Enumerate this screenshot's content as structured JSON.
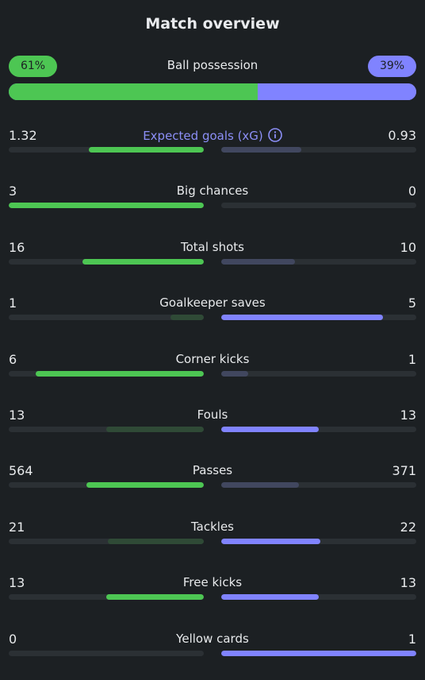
{
  "title": "Match overview",
  "possession": {
    "label": "Ball possession",
    "home_pct_label": "61%",
    "away_pct_label": "39%",
    "home_fraction": 0.61
  },
  "colors": {
    "home_strong": "#4dc653",
    "home_dim": "#2f4a36",
    "away_strong": "#8083ff",
    "away_dim": "#41475f"
  },
  "stats": [
    {
      "label": "Expected goals (xG)",
      "home": "1.32",
      "away": "0.93",
      "home_fraction": 0.59,
      "away_fraction": 0.41,
      "highlight": "home",
      "accent": true,
      "info_icon": "info-icon"
    },
    {
      "label": "Big chances",
      "home": "3",
      "away": "0",
      "home_fraction": 1.0,
      "away_fraction": 0.0,
      "highlight": "home"
    },
    {
      "label": "Total shots",
      "home": "16",
      "away": "10",
      "home_fraction": 0.62,
      "away_fraction": 0.38,
      "highlight": "home"
    },
    {
      "label": "Goalkeeper saves",
      "home": "1",
      "away": "5",
      "home_fraction": 0.17,
      "away_fraction": 0.83,
      "highlight": "away"
    },
    {
      "label": "Corner kicks",
      "home": "6",
      "away": "1",
      "home_fraction": 0.86,
      "away_fraction": 0.14,
      "highlight": "home"
    },
    {
      "label": "Fouls",
      "home": "13",
      "away": "13",
      "home_fraction": 0.5,
      "away_fraction": 0.5,
      "highlight": "away"
    },
    {
      "label": "Passes",
      "home": "564",
      "away": "371",
      "home_fraction": 0.6,
      "away_fraction": 0.4,
      "highlight": "home"
    },
    {
      "label": "Tackles",
      "home": "21",
      "away": "22",
      "home_fraction": 0.49,
      "away_fraction": 0.51,
      "highlight": "away"
    },
    {
      "label": "Free kicks",
      "home": "13",
      "away": "13",
      "home_fraction": 0.5,
      "away_fraction": 0.5,
      "highlight": "both"
    },
    {
      "label": "Yellow cards",
      "home": "0",
      "away": "1",
      "home_fraction": 0.0,
      "away_fraction": 1.0,
      "highlight": "away"
    }
  ]
}
